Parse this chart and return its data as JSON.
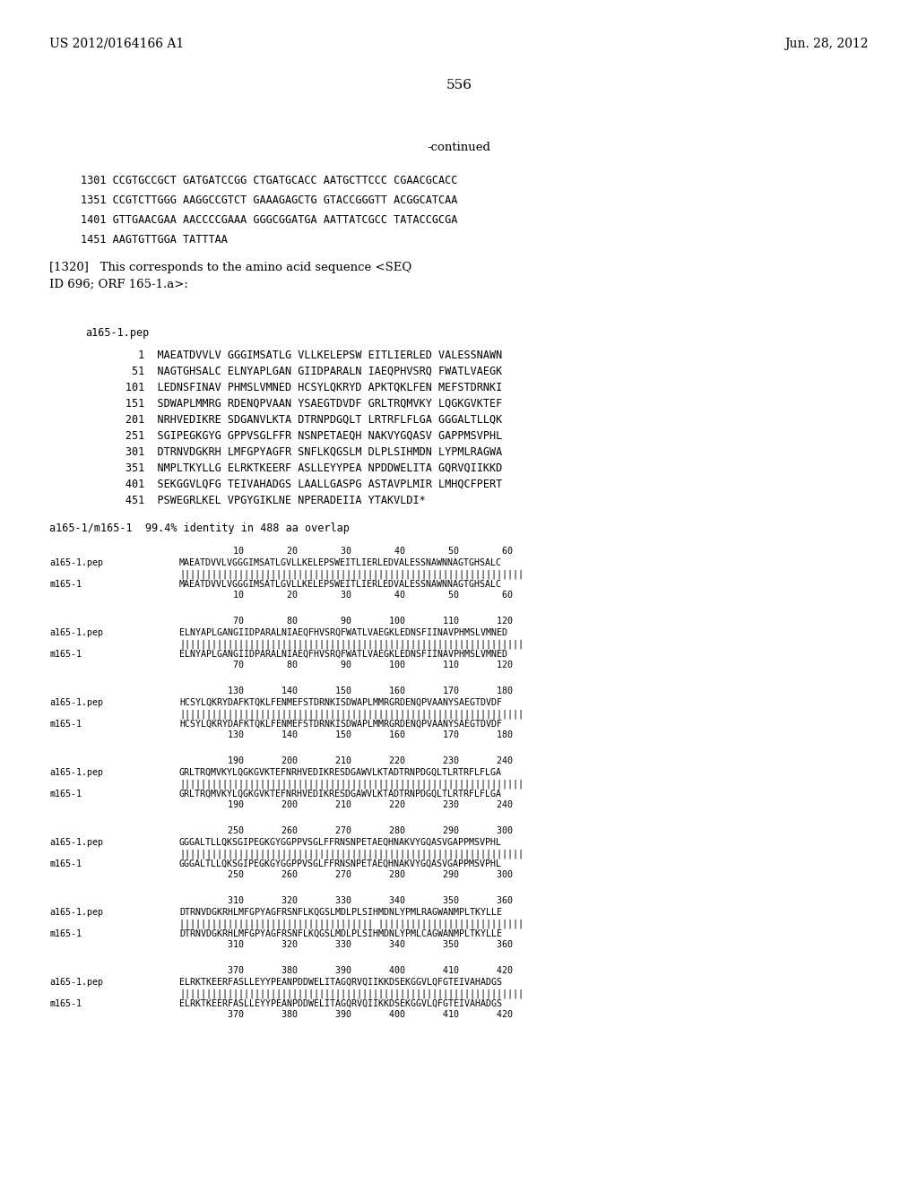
{
  "header_left": "US 2012/0164166 A1",
  "header_right": "Jun. 28, 2012",
  "page_number": "556",
  "continued": "-continued",
  "background_color": "#ffffff",
  "text_color": "#000000",
  "seq_lines": [
    "1301 CCGTGCCGCT GATGATCCGG CTGATGCACC AATGCTTCCC CGAACGCACC",
    "1351 CCGTCTTGGG AAGGCCGTCT GAAAGAGCTG GTACCGGGTT ACGGCATCAA",
    "1401 GTTGAACGAA AACCCCGAAA GGGCGGATGA AATTATCGCC TATACCGCGA",
    "1451 AAGTGTTGGA TATTTAA"
  ],
  "bracket_text_line1": "[1320]   This corresponds to the amino acid sequence <SEQ",
  "bracket_text_line2": "ID 696; ORF 165-1.a>:",
  "pep_label": "a165-1.pep",
  "pep_lines": [
    "         1  MAEATDVVLV GGGIMSATLG VLLKELEPSW EITLIERLED VALESSNAWN",
    "        51  NAGTGHSALC ELNYAPLGAN GIIDPARALN IAEQPHVSRQ FWATLVAEGK",
    "       101  LEDNSFINAV PHMSLVMNED HCSYLQKRYD APKTQKLFEN MEFSTDRNKI",
    "       151  SDWAPLMMRG RDENQPVAAN YSAEGTDVDF GRLTRQMVKY LQGKGVKTEF",
    "       201  NRHVEDIKRE SDGANVLKTA DTRNPDGQLT LRTRFLFLGA GGGALTLLQK",
    "       251  SGIPEGKGYG GPPVSGLFFR NSNPETAEQH NAKVYGQASV GAPPMSVPHL",
    "       301  DTRNVDGKRH LMFGPYAGFR SNFLKQGSLM DLPLSIHMDN LYPMLRAGWA",
    "       351  NMPLTKYLLG ELRKTKEERF ASLLEYYPEA NPDDWELITA GQRVQIIKKD",
    "       401  SEKGGVLQFG TEIVAHADGS LAALLGASPG ASTAVPLMIR LMHQCFPERT",
    "       451  PSWEGRLKEL VPGYGIKLNE NPERADEIIA YTAKVLDI*"
  ],
  "identity_line": "a165-1/m165-1  99.4% identity in 488 aa overlap",
  "align_blocks": [
    {
      "nums_top": "          10        20        30        40        50        60",
      "label1": "a165-1.pep",
      "seq1": "MAEATDVVLVGGGIMSATLGVLLKELEPSWEITLIERLEDVALESSNAWNNAGTGHSALC",
      "bars": "||||||||||||||||||||||||||||||||||||||||||||||||||||||||||||||||",
      "label2": "m165-1",
      "seq2": "MAEATDVVLVGGGIMSATLGVLLKELEPSWEITLIERLEDVALESSNAWNNAGTGHSALC",
      "nums_bot": "          10        20        30        40        50        60"
    },
    {
      "nums_top": "          70        80        90       100       110       120",
      "label1": "a165-1.pep",
      "seq1": "ELNYAPLGANGIIDPARALNIAEQFHVSRQFWATLVAEGKLEDNSFIINAVPHMSLVMNED",
      "bars": "||||||||||||||||||||||||||||||||||||||||||||||||||||||||||||||||",
      "label2": "m165-1",
      "seq2": "ELNYAPLGANGIIDPARALNIAEQFHVSRQFWATLVAEGKLEDNSFIINAVPHMSLVMNED",
      "nums_bot": "          70        80        90       100       110       120"
    },
    {
      "nums_top": "         130       140       150       160       170       180",
      "label1": "a165-1.pep",
      "seq1": "HCSYLQKRYDAFKTQKLFENMEFSTDRNKISDWAPLMMRGRDENQPVAANYSAEGTDVDF",
      "bars": "||||||||||||||||||||||||||||||||||||||||||||||||||||||||||||||||",
      "label2": "m165-1",
      "seq2": "HCSYLQKRYDAFKTQKLFENMEFSTDRNKISDWAPLMMRGRDENQPVAANYSAEGTDVDF",
      "nums_bot": "         130       140       150       160       170       180"
    },
    {
      "nums_top": "         190       200       210       220       230       240",
      "label1": "a165-1.pep",
      "seq1": "GRLTRQMVKYLQGKGVKTEFNRHVEDIKRESDGAWVLKTADTRNPDGQLTLRTRFLFLGA",
      "bars": "||||||||||||||||||||||||||||||||||||||||||||||||||||||||||||||||",
      "label2": "m165-1",
      "seq2": "GRLTRQMVKYLQGKGVKTEFNRHVEDIKRESDGAWVLKTADTRNPDGQLTLRTRFLFLGA",
      "nums_bot": "         190       200       210       220       230       240"
    },
    {
      "nums_top": "         250       260       270       280       290       300",
      "label1": "a165-1.pep",
      "seq1": "GGGALTLLQKSGIPEGKGYGGPPVSGLFFRNSNPETAEQHNAKVYGQASVGAPPMSVPHL",
      "bars": "||||||||||||||||||||||||||||||||||||||||||||||||||||||||||||||||",
      "label2": "m165-1",
      "seq2": "GGGALTLLQKSGIPEGKGYGGPPVSGLFFRNSNPETAEQHNAKVYGQASVGAPPMSVPHL",
      "nums_bot": "         250       260       270       280       290       300"
    },
    {
      "nums_top": "         310       320       330       340       350       360",
      "label1": "a165-1.pep",
      "seq1": "DTRNVDGKRHLMFGPYAGFRSNFLKQGSLMDLPLSIHMDNLYPMLRAGWANMPLTKYLLE",
      "bars": "|||||||||||||||||||||||||||||||||||| |||||||||||||||||||||||||||",
      "label2": "m165-1",
      "seq2": "DTRNVDGKRHLMFGPYAGFRSNFLKQGSLMDLPLSIHMDNLYPMLCAGWANMPLTKYLLE",
      "nums_bot": "         310       320       330       340       350       360"
    },
    {
      "nums_top": "         370       380       390       400       410       420",
      "label1": "a165-1.pep",
      "seq1": "ELRKTKEERFASLLEYYPEANPDDWELITAGQRVQIIKKDSEKGGVLQFGTEIVAHADGS",
      "bars": "||||||||||||||||||||||||||||||||||||||||||||||||||||||||||||||||",
      "label2": "m165-1",
      "seq2": "ELRKTKEERFASLLEYYPEANPDDWELITAGQRVQIIKKDSEKGGVLQFGTEIVAHADGS",
      "nums_bot": "         370       380       390       400       410       420"
    }
  ]
}
